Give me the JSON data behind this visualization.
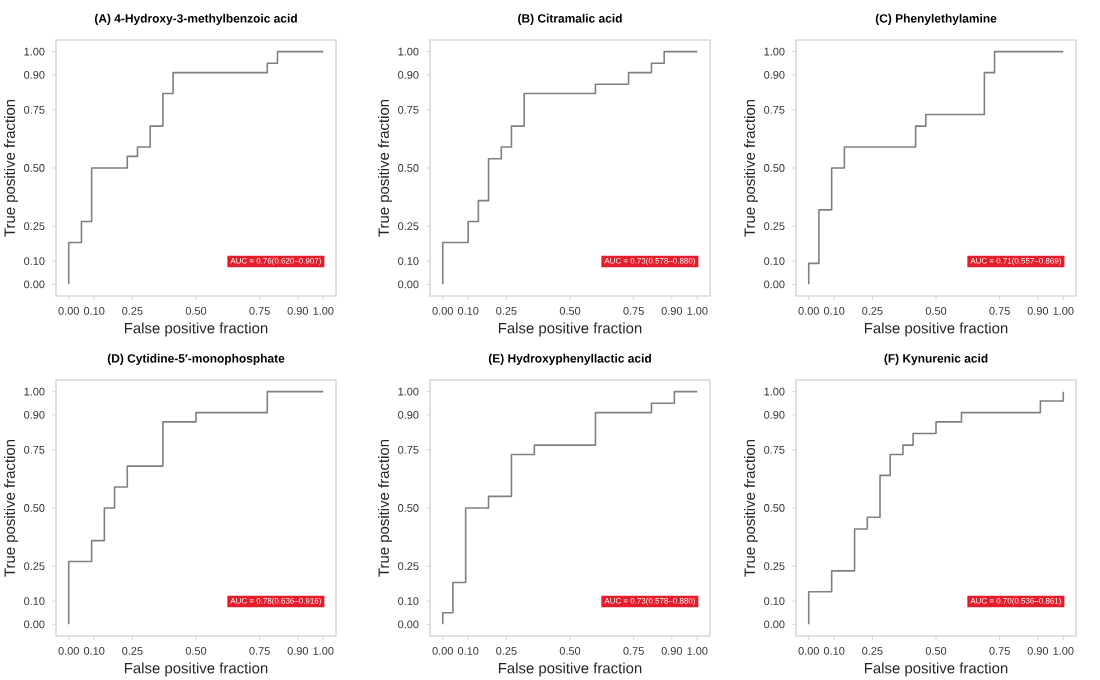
{
  "chart_data": [
    {
      "type": "step",
      "title": "(A) 4-Hydroxy-3-methylbenzoic acid",
      "xlabel": "False positive fraction",
      "ylabel": "True positive fraction",
      "color": "#808080",
      "x": [
        0,
        0,
        0.05,
        0.09,
        0.23,
        0.27,
        0.32,
        0.37,
        0.41,
        0.78,
        0.82,
        1.0
      ],
      "values": [
        0,
        0.18,
        0.27,
        0.5,
        0.55,
        0.59,
        0.68,
        0.82,
        0.91,
        0.95,
        1.0,
        1.0
      ],
      "xlim": [
        -0.05,
        1.05
      ],
      "ylim": [
        -0.05,
        1.05
      ],
      "xticks": [
        {
          "value": 0,
          "label": "0.00"
        },
        {
          "value": 0.1,
          "label": "0.10"
        },
        {
          "value": 0.25,
          "label": "0.25"
        },
        {
          "value": 0.5,
          "label": "0.50"
        },
        {
          "value": 0.75,
          "label": "0.75"
        },
        {
          "value": 0.9,
          "label": "0.90"
        },
        {
          "value": 1,
          "label": "1.00"
        }
      ],
      "yticks": [
        {
          "value": 0,
          "label": "0.00"
        },
        {
          "value": 0.1,
          "label": "0.10"
        },
        {
          "value": 0.25,
          "label": "0.25"
        },
        {
          "value": 0.5,
          "label": "0.50"
        },
        {
          "value": 0.75,
          "label": "0.75"
        },
        {
          "value": 0.9,
          "label": "0.90"
        },
        {
          "value": 1,
          "label": "1.00"
        }
      ],
      "annotations": [
        "AUC = 0.76(0.620–0.907)"
      ]
    },
    {
      "type": "step",
      "title": "(B) Citramalic acid",
      "xlabel": "False positive fraction",
      "ylabel": "True positive fraction",
      "color": "#808080",
      "x": [
        0,
        0,
        0.1,
        0.14,
        0.18,
        0.23,
        0.27,
        0.32,
        0.6,
        0.73,
        0.82,
        0.87,
        1.0
      ],
      "values": [
        0,
        0.18,
        0.27,
        0.36,
        0.54,
        0.59,
        0.68,
        0.82,
        0.86,
        0.91,
        0.95,
        1.0,
        1.0
      ],
      "xlim": [
        -0.05,
        1.05
      ],
      "ylim": [
        -0.05,
        1.05
      ],
      "xticks": [
        {
          "value": 0,
          "label": "0.00"
        },
        {
          "value": 0.1,
          "label": "0.10"
        },
        {
          "value": 0.25,
          "label": "0.25"
        },
        {
          "value": 0.5,
          "label": "0.50"
        },
        {
          "value": 0.75,
          "label": "0.75"
        },
        {
          "value": 0.9,
          "label": "0.90"
        },
        {
          "value": 1,
          "label": "1.00"
        }
      ],
      "yticks": [
        {
          "value": 0,
          "label": "0.00"
        },
        {
          "value": 0.1,
          "label": "0.10"
        },
        {
          "value": 0.25,
          "label": "0.25"
        },
        {
          "value": 0.5,
          "label": "0.50"
        },
        {
          "value": 0.75,
          "label": "0.75"
        },
        {
          "value": 0.9,
          "label": "0.90"
        },
        {
          "value": 1,
          "label": "1.00"
        }
      ],
      "annotations": [
        "AUC = 0.73(0.578–0.880)"
      ]
    },
    {
      "type": "step",
      "title": "(C) Phenylethylamine",
      "xlabel": "False positive fraction",
      "ylabel": "True positive fraction",
      "color": "#808080",
      "x": [
        0,
        0,
        0.04,
        0.09,
        0.14,
        0.42,
        0.46,
        0.69,
        0.73,
        1.0
      ],
      "values": [
        0,
        0.09,
        0.32,
        0.5,
        0.59,
        0.68,
        0.73,
        0.91,
        1.0,
        1.0
      ],
      "xlim": [
        -0.05,
        1.05
      ],
      "ylim": [
        -0.05,
        1.05
      ],
      "xticks": [
        {
          "value": 0,
          "label": "0.00"
        },
        {
          "value": 0.1,
          "label": "0.10"
        },
        {
          "value": 0.25,
          "label": "0.25"
        },
        {
          "value": 0.5,
          "label": "0.50"
        },
        {
          "value": 0.75,
          "label": "0.75"
        },
        {
          "value": 0.9,
          "label": "0.90"
        },
        {
          "value": 1,
          "label": "1.00"
        }
      ],
      "yticks": [
        {
          "value": 0,
          "label": "0.00"
        },
        {
          "value": 0.1,
          "label": "0.10"
        },
        {
          "value": 0.25,
          "label": "0.25"
        },
        {
          "value": 0.5,
          "label": "0.50"
        },
        {
          "value": 0.75,
          "label": "0.75"
        },
        {
          "value": 0.9,
          "label": "0.90"
        },
        {
          "value": 1,
          "label": "1.00"
        }
      ],
      "annotations": [
        "AUC = 0.71(0.557–0.869)"
      ]
    },
    {
      "type": "step",
      "title": "(D) Cytidine-5′-monophosphate",
      "xlabel": "False positive fraction",
      "ylabel": "True positive fraction",
      "color": "#808080",
      "x": [
        0,
        0,
        0.09,
        0.14,
        0.18,
        0.23,
        0.37,
        0.5,
        0.78,
        1.0
      ],
      "values": [
        0,
        0.27,
        0.36,
        0.5,
        0.59,
        0.68,
        0.87,
        0.91,
        1.0,
        1.0
      ],
      "xlim": [
        -0.05,
        1.05
      ],
      "ylim": [
        -0.05,
        1.05
      ],
      "xticks": [
        {
          "value": 0,
          "label": "0.00"
        },
        {
          "value": 0.1,
          "label": "0.10"
        },
        {
          "value": 0.25,
          "label": "0.25"
        },
        {
          "value": 0.5,
          "label": "0.50"
        },
        {
          "value": 0.75,
          "label": "0.75"
        },
        {
          "value": 0.9,
          "label": "0.90"
        },
        {
          "value": 1,
          "label": "1.00"
        }
      ],
      "yticks": [
        {
          "value": 0,
          "label": "0.00"
        },
        {
          "value": 0.1,
          "label": "0.10"
        },
        {
          "value": 0.25,
          "label": "0.25"
        },
        {
          "value": 0.5,
          "label": "0.50"
        },
        {
          "value": 0.75,
          "label": "0.75"
        },
        {
          "value": 0.9,
          "label": "0.90"
        },
        {
          "value": 1,
          "label": "1.00"
        }
      ],
      "annotations": [
        "AUC = 0.78(0.636–0.916)"
      ]
    },
    {
      "type": "step",
      "title": "(E) Hydroxyphenyllactic acid",
      "xlabel": "False positive fraction",
      "ylabel": "True positive fraction",
      "color": "#808080",
      "x": [
        0,
        0,
        0.04,
        0.09,
        0.18,
        0.27,
        0.36,
        0.6,
        0.82,
        0.91,
        1.0
      ],
      "values": [
        0,
        0.05,
        0.18,
        0.5,
        0.55,
        0.73,
        0.77,
        0.91,
        0.95,
        1.0,
        1.0
      ],
      "xlim": [
        -0.05,
        1.05
      ],
      "ylim": [
        -0.05,
        1.05
      ],
      "xticks": [
        {
          "value": 0,
          "label": "0.00"
        },
        {
          "value": 0.1,
          "label": "0.10"
        },
        {
          "value": 0.25,
          "label": "0.25"
        },
        {
          "value": 0.5,
          "label": "0.50"
        },
        {
          "value": 0.75,
          "label": "0.75"
        },
        {
          "value": 0.9,
          "label": "0.90"
        },
        {
          "value": 1,
          "label": "1.00"
        }
      ],
      "yticks": [
        {
          "value": 0,
          "label": "0.00"
        },
        {
          "value": 0.1,
          "label": "0.10"
        },
        {
          "value": 0.25,
          "label": "0.25"
        },
        {
          "value": 0.5,
          "label": "0.50"
        },
        {
          "value": 0.75,
          "label": "0.75"
        },
        {
          "value": 0.9,
          "label": "0.90"
        },
        {
          "value": 1,
          "label": "1.00"
        }
      ],
      "annotations": [
        "AUC = 0.73(0.578–0.880)"
      ]
    },
    {
      "type": "step",
      "title": "(F) Kynurenic acid",
      "xlabel": "False positive fraction",
      "ylabel": "True positive fraction",
      "color": "#808080",
      "x": [
        0,
        0,
        0.09,
        0.18,
        0.23,
        0.28,
        0.32,
        0.37,
        0.41,
        0.5,
        0.6,
        0.91,
        1.0
      ],
      "values": [
        0,
        0.14,
        0.23,
        0.41,
        0.46,
        0.64,
        0.73,
        0.77,
        0.82,
        0.87,
        0.91,
        0.96,
        1.0
      ],
      "xlim": [
        -0.05,
        1.05
      ],
      "ylim": [
        -0.05,
        1.05
      ],
      "xticks": [
        {
          "value": 0,
          "label": "0.00"
        },
        {
          "value": 0.1,
          "label": "0.10"
        },
        {
          "value": 0.25,
          "label": "0.25"
        },
        {
          "value": 0.5,
          "label": "0.50"
        },
        {
          "value": 0.75,
          "label": "0.75"
        },
        {
          "value": 0.9,
          "label": "0.90"
        },
        {
          "value": 1,
          "label": "1.00"
        }
      ],
      "yticks": [
        {
          "value": 0,
          "label": "0.00"
        },
        {
          "value": 0.1,
          "label": "0.10"
        },
        {
          "value": 0.25,
          "label": "0.25"
        },
        {
          "value": 0.5,
          "label": "0.50"
        },
        {
          "value": 0.75,
          "label": "0.75"
        },
        {
          "value": 0.9,
          "label": "0.90"
        },
        {
          "value": 1,
          "label": "1.00"
        }
      ],
      "annotations": [
        "AUC = 0.70(0.536–0.861)"
      ]
    }
  ]
}
